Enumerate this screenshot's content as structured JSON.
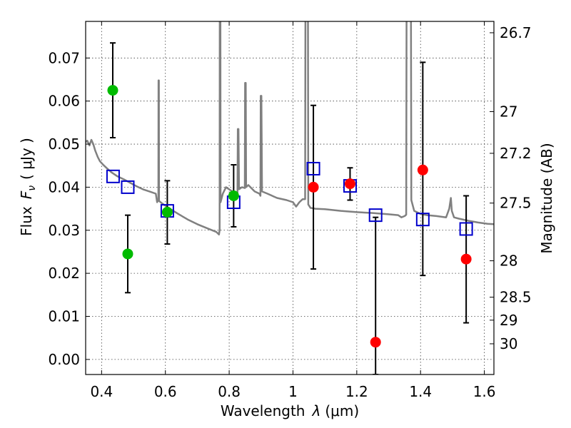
{
  "chart_data": {
    "type": "scatter",
    "xlabel_prefix": "Wavelength",
    "xlabel_symbol": "λ",
    "xlabel_unit": "(μm)",
    "ylabel_prefix": "Flux",
    "ylabel_symbol": "F",
    "ylabel_subscript": "ν",
    "ylabel_unit": "( μJy )",
    "ylabel_right": "Magnitude (AB)",
    "xlim": [
      0.35,
      1.63
    ],
    "ylim": [
      -0.0035,
      0.0785
    ],
    "x_ticks": [
      0.4,
      0.6,
      0.8,
      1.0,
      1.2,
      1.4,
      1.6
    ],
    "x_tick_labels": [
      "0.4",
      "0.6",
      "0.8",
      "1",
      "1.2",
      "1.4",
      "1.6"
    ],
    "y_ticks": [
      0.0,
      0.01,
      0.02,
      0.03,
      0.04,
      0.05,
      0.06,
      0.07
    ],
    "y_tick_labels": [
      "0.00",
      "0.01",
      "0.02",
      "0.03",
      "0.04",
      "0.05",
      "0.06",
      "0.07"
    ],
    "right_ticks": [
      26.7,
      27,
      27.2,
      27.5,
      28,
      28.5,
      29,
      30
    ],
    "right_tick_labels": [
      "26.7",
      "27",
      "27.2",
      "27.5",
      "28",
      "28.5",
      "29",
      "30"
    ],
    "colors": {
      "model": "#808080",
      "green": "#00bb00",
      "red": "#ff0000",
      "box": "#0000cc",
      "errorbar": "#000000"
    },
    "series": [
      {
        "name": "green-points",
        "color": "#00bb00",
        "points": [
          {
            "x": 0.435,
            "y": 0.0625,
            "yerr_low": 0.0515,
            "yerr_high": 0.0735
          },
          {
            "x": 0.482,
            "y": 0.0245,
            "yerr_low": 0.0155,
            "yerr_high": 0.0335
          },
          {
            "x": 0.606,
            "y": 0.0342,
            "yerr_low": 0.0268,
            "yerr_high": 0.0415
          },
          {
            "x": 0.814,
            "y": 0.038,
            "yerr_low": 0.0308,
            "yerr_high": 0.0452
          }
        ]
      },
      {
        "name": "red-points",
        "color": "#ff0000",
        "points": [
          {
            "x": 1.064,
            "y": 0.04,
            "yerr_low": 0.021,
            "yerr_high": 0.059
          },
          {
            "x": 1.179,
            "y": 0.0408,
            "yerr_low": 0.037,
            "yerr_high": 0.0445
          },
          {
            "x": 1.259,
            "y": 0.004,
            "yerr_low": -0.0035,
            "yerr_high": 0.033
          },
          {
            "x": 1.407,
            "y": 0.044,
            "yerr_low": 0.0195,
            "yerr_high": 0.069
          },
          {
            "x": 1.543,
            "y": 0.0233,
            "yerr_low": 0.0085,
            "yerr_high": 0.038
          }
        ]
      },
      {
        "name": "model-photometry-boxes",
        "color": "#0000cc",
        "points": [
          {
            "x": 0.436,
            "y": 0.0425
          },
          {
            "x": 0.482,
            "y": 0.04
          },
          {
            "x": 0.606,
            "y": 0.0345
          },
          {
            "x": 0.814,
            "y": 0.0365
          },
          {
            "x": 1.064,
            "y": 0.0443
          },
          {
            "x": 1.179,
            "y": 0.0403
          },
          {
            "x": 1.259,
            "y": 0.0335
          },
          {
            "x": 1.407,
            "y": 0.0325
          },
          {
            "x": 1.543,
            "y": 0.0303
          }
        ]
      },
      {
        "name": "model-spectrum",
        "color": "#808080",
        "points": [
          [
            0.35,
            0.0505
          ],
          [
            0.355,
            0.0508
          ],
          [
            0.362,
            0.0497
          ],
          [
            0.368,
            0.051
          ],
          [
            0.374,
            0.05
          ],
          [
            0.38,
            0.0485
          ],
          [
            0.388,
            0.047
          ],
          [
            0.395,
            0.046
          ],
          [
            0.405,
            0.0452
          ],
          [
            0.415,
            0.0445
          ],
          [
            0.43,
            0.0435
          ],
          [
            0.45,
            0.0425
          ],
          [
            0.47,
            0.0418
          ],
          [
            0.49,
            0.041
          ],
          [
            0.51,
            0.0402
          ],
          [
            0.53,
            0.0395
          ],
          [
            0.55,
            0.039
          ],
          [
            0.57,
            0.0385
          ],
          [
            0.574,
            0.0365
          ],
          [
            0.578,
            0.037
          ],
          [
            0.5785,
            0.0648
          ],
          [
            0.5795,
            0.0648
          ],
          [
            0.58,
            0.0368
          ],
          [
            0.59,
            0.0362
          ],
          [
            0.61,
            0.0352
          ],
          [
            0.64,
            0.0338
          ],
          [
            0.67,
            0.0325
          ],
          [
            0.7,
            0.0314
          ],
          [
            0.73,
            0.0305
          ],
          [
            0.76,
            0.0296
          ],
          [
            0.768,
            0.029
          ],
          [
            0.77,
            0.03
          ],
          [
            0.7705,
            0.079
          ],
          [
            0.7725,
            0.079
          ],
          [
            0.773,
            0.0365
          ],
          [
            0.78,
            0.0385
          ],
          [
            0.79,
            0.04
          ],
          [
            0.8,
            0.0395
          ],
          [
            0.81,
            0.039
          ],
          [
            0.82,
            0.0385
          ],
          [
            0.826,
            0.038
          ],
          [
            0.827,
            0.0535
          ],
          [
            0.829,
            0.0535
          ],
          [
            0.831,
            0.0395
          ],
          [
            0.84,
            0.04
          ],
          [
            0.849,
            0.0398
          ],
          [
            0.85,
            0.0642
          ],
          [
            0.852,
            0.0642
          ],
          [
            0.853,
            0.04
          ],
          [
            0.86,
            0.0405
          ],
          [
            0.88,
            0.039
          ],
          [
            0.895,
            0.0385
          ],
          [
            0.898,
            0.038
          ],
          [
            0.899,
            0.0612
          ],
          [
            0.901,
            0.0612
          ],
          [
            0.903,
            0.039
          ],
          [
            0.92,
            0.0385
          ],
          [
            0.95,
            0.0375
          ],
          [
            0.98,
            0.037
          ],
          [
            1.0,
            0.0365
          ],
          [
            1.01,
            0.0355
          ],
          [
            1.02,
            0.0365
          ],
          [
            1.03,
            0.0372
          ],
          [
            1.038,
            0.0372
          ],
          [
            1.039,
            0.079
          ],
          [
            1.047,
            0.079
          ],
          [
            1.048,
            0.036
          ],
          [
            1.055,
            0.0352
          ],
          [
            1.07,
            0.035
          ],
          [
            1.1,
            0.0349
          ],
          [
            1.15,
            0.0345
          ],
          [
            1.2,
            0.0342
          ],
          [
            1.25,
            0.034
          ],
          [
            1.3,
            0.0337
          ],
          [
            1.33,
            0.0335
          ],
          [
            1.34,
            0.033
          ],
          [
            1.35,
            0.0333
          ],
          [
            1.355,
            0.0336
          ],
          [
            1.356,
            0.079
          ],
          [
            1.37,
            0.079
          ],
          [
            1.371,
            0.037
          ],
          [
            1.38,
            0.0345
          ],
          [
            1.4,
            0.0338
          ],
          [
            1.42,
            0.0335
          ],
          [
            1.45,
            0.0333
          ],
          [
            1.47,
            0.0331
          ],
          [
            1.48,
            0.033
          ],
          [
            1.49,
            0.035
          ],
          [
            1.495,
            0.0375
          ],
          [
            1.498,
            0.0345
          ],
          [
            1.505,
            0.033
          ],
          [
            1.52,
            0.0327
          ],
          [
            1.55,
            0.0322
          ],
          [
            1.58,
            0.0318
          ],
          [
            1.61,
            0.0315
          ],
          [
            1.63,
            0.0314
          ]
        ]
      }
    ]
  }
}
